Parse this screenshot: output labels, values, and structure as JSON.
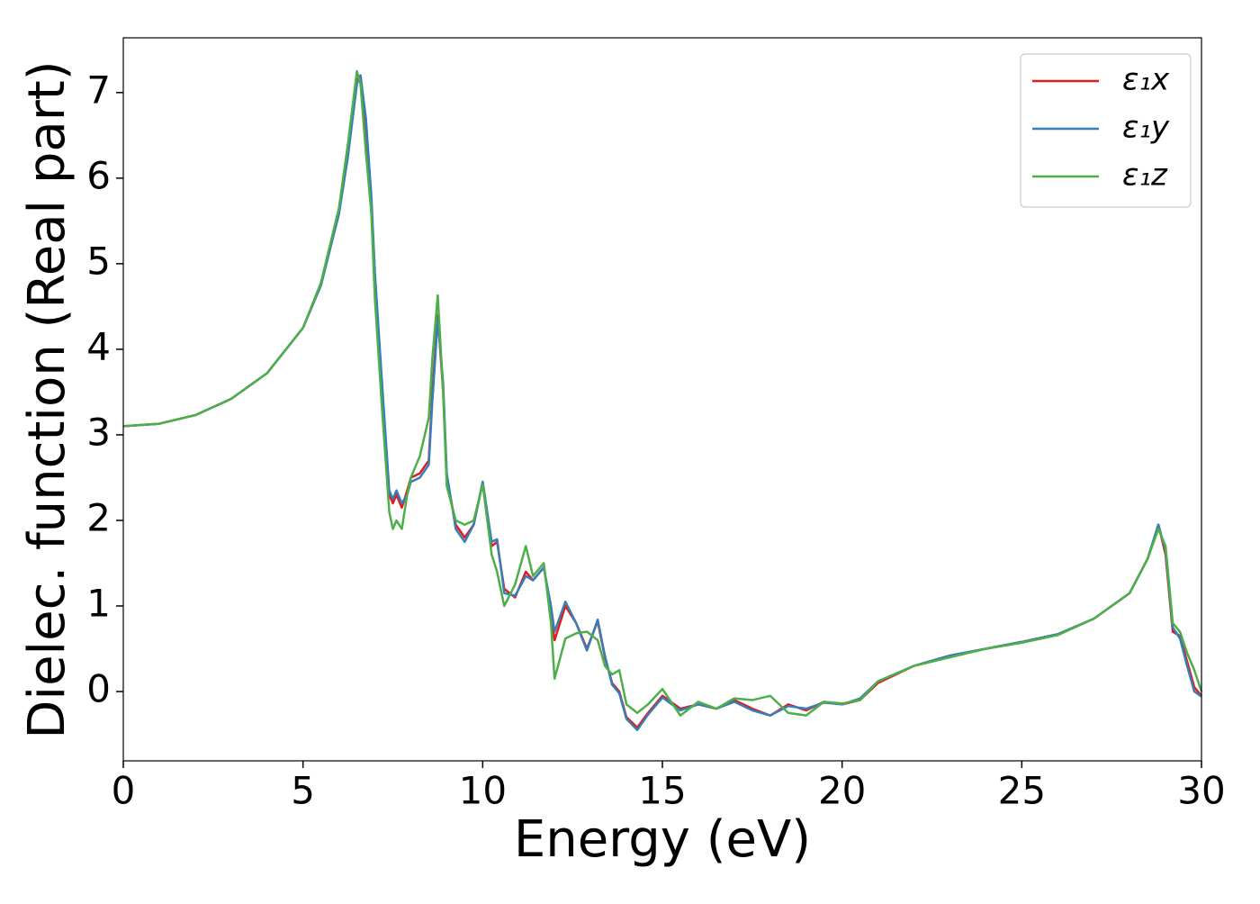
{
  "chart_data": {
    "type": "line",
    "xlabel": "Energy (eV)",
    "ylabel": "Dielec. function (Real part)",
    "xlim": [
      0,
      30
    ],
    "ylim": [
      -0.81,
      7.64
    ],
    "xticks": [
      0,
      5,
      10,
      15,
      20,
      25,
      30
    ],
    "yticks": [
      0,
      1,
      2,
      3,
      4,
      5,
      6,
      7
    ],
    "legend": "upper right",
    "x": [
      0,
      1,
      2,
      3,
      4,
      5,
      5.5,
      6,
      6.25,
      6.5,
      6.6,
      6.75,
      6.9,
      7.0,
      7.2,
      7.4,
      7.5,
      7.6,
      7.75,
      7.9,
      8.0,
      8.25,
      8.5,
      8.6,
      8.75,
      8.9,
      9.0,
      9.25,
      9.5,
      9.75,
      10.0,
      10.25,
      10.4,
      10.6,
      10.9,
      11.2,
      11.4,
      11.7,
      11.9,
      12.0,
      12.3,
      12.6,
      12.9,
      13.2,
      13.4,
      13.6,
      13.8,
      14.0,
      14.3,
      14.6,
      15.0,
      15.5,
      16,
      16.5,
      17,
      17.5,
      18,
      18.5,
      19,
      19.5,
      20,
      20.5,
      21,
      22,
      23,
      24,
      25,
      26,
      27,
      28,
      28.5,
      28.8,
      29.0,
      29.2,
      29.4,
      29.6,
      29.8,
      30
    ],
    "series": [
      {
        "name": "ε₁x",
        "color": "#e41a1c",
        "values": [
          3.1,
          3.13,
          3.23,
          3.42,
          3.72,
          4.25,
          4.75,
          5.6,
          6.3,
          7.15,
          7.2,
          6.6,
          5.7,
          4.8,
          3.5,
          2.3,
          2.2,
          2.3,
          2.15,
          2.35,
          2.5,
          2.55,
          2.7,
          3.5,
          4.4,
          3.5,
          2.5,
          1.95,
          1.8,
          1.95,
          2.45,
          1.7,
          1.75,
          1.2,
          1.1,
          1.4,
          1.3,
          1.45,
          0.95,
          0.6,
          1.0,
          0.8,
          0.5,
          0.82,
          0.4,
          0.1,
          0.0,
          -0.3,
          -0.42,
          -0.25,
          -0.05,
          -0.2,
          -0.15,
          -0.2,
          -0.1,
          -0.2,
          -0.28,
          -0.15,
          -0.22,
          -0.12,
          -0.15,
          -0.1,
          0.1,
          0.3,
          0.42,
          0.5,
          0.58,
          0.67,
          0.85,
          1.15,
          1.55,
          1.95,
          1.6,
          0.7,
          0.65,
          0.35,
          0.05,
          -0.05
        ]
      },
      {
        "name": "ε₁y",
        "color": "#377eb8",
        "values": [
          3.1,
          3.13,
          3.23,
          3.42,
          3.72,
          4.25,
          4.75,
          5.58,
          6.25,
          7.1,
          7.2,
          6.7,
          5.8,
          4.9,
          3.6,
          2.35,
          2.25,
          2.35,
          2.2,
          2.3,
          2.45,
          2.5,
          2.65,
          3.4,
          4.35,
          3.6,
          2.55,
          1.9,
          1.75,
          1.95,
          2.45,
          1.75,
          1.78,
          1.15,
          1.12,
          1.35,
          1.3,
          1.45,
          1.0,
          0.7,
          1.05,
          0.8,
          0.48,
          0.84,
          0.42,
          0.08,
          -0.02,
          -0.32,
          -0.45,
          -0.27,
          -0.07,
          -0.22,
          -0.15,
          -0.2,
          -0.12,
          -0.22,
          -0.28,
          -0.17,
          -0.2,
          -0.13,
          -0.15,
          -0.08,
          0.12,
          0.3,
          0.42,
          0.5,
          0.58,
          0.67,
          0.85,
          1.15,
          1.55,
          1.95,
          1.65,
          0.75,
          0.62,
          0.3,
          0.0,
          -0.06
        ]
      },
      {
        "name": "ε₁z",
        "color": "#4daf4a",
        "values": [
          3.1,
          3.13,
          3.23,
          3.42,
          3.72,
          4.25,
          4.78,
          5.65,
          6.4,
          7.25,
          7.1,
          6.3,
          5.6,
          4.6,
          3.3,
          2.1,
          1.9,
          2.0,
          1.9,
          2.3,
          2.5,
          2.75,
          3.2,
          3.9,
          4.63,
          3.5,
          2.4,
          2.0,
          1.95,
          2.0,
          2.42,
          1.6,
          1.4,
          1.0,
          1.25,
          1.7,
          1.35,
          1.5,
          0.8,
          0.15,
          0.62,
          0.68,
          0.7,
          0.6,
          0.3,
          0.2,
          0.25,
          -0.15,
          -0.25,
          -0.15,
          0.03,
          -0.28,
          -0.12,
          -0.2,
          -0.08,
          -0.1,
          -0.05,
          -0.25,
          -0.28,
          -0.12,
          -0.14,
          -0.1,
          0.12,
          0.3,
          0.4,
          0.5,
          0.57,
          0.66,
          0.85,
          1.15,
          1.55,
          1.9,
          1.7,
          0.8,
          0.7,
          0.45,
          0.25,
          0.0
        ]
      }
    ]
  }
}
